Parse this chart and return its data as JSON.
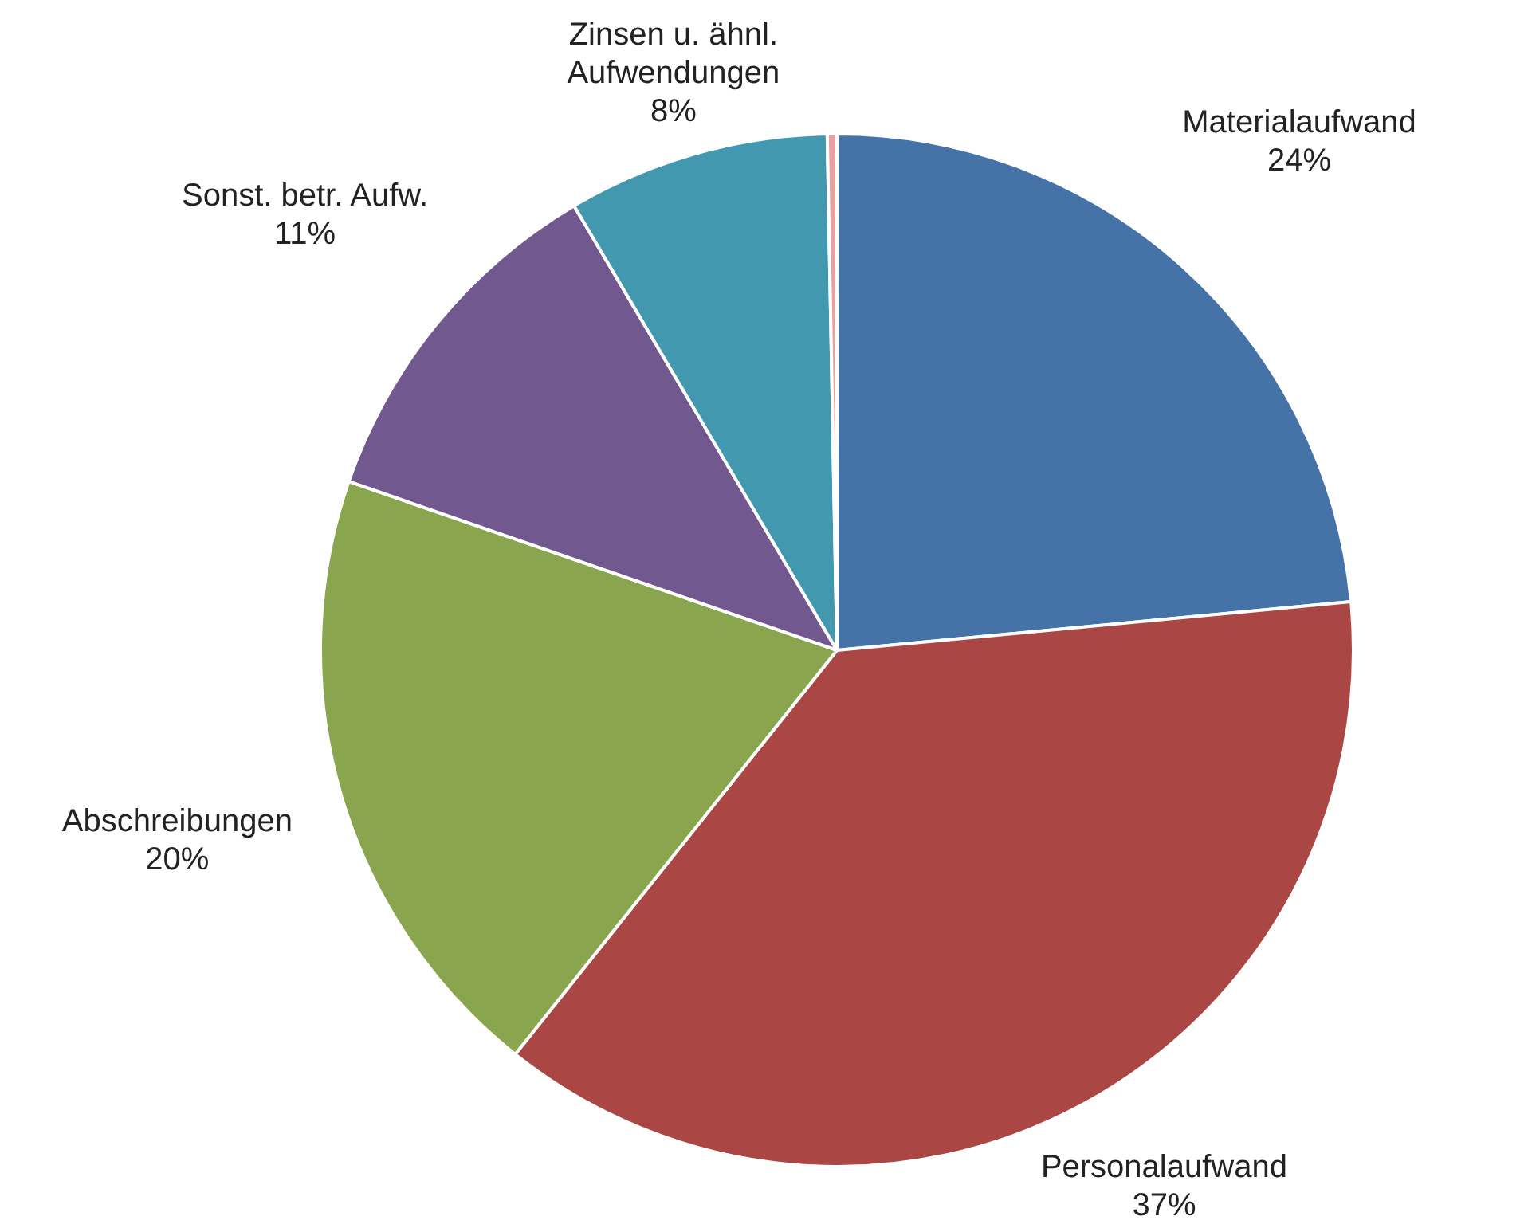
{
  "chart_data": {
    "type": "pie",
    "categories": [
      "Materialaufwand",
      "Personalaufwand",
      "Abschreibungen",
      "Sonst. betr. Aufw.",
      "Zinsen u. ähnl. Aufwendungen",
      null
    ],
    "values": [
      23.5,
      37.2,
      19.6,
      11.2,
      8.2,
      0.3
    ],
    "value_labels": [
      "24%",
      "37%",
      "20%",
      "11%",
      "8%",
      null
    ],
    "colors": [
      "#4572a7",
      "#aa4643",
      "#89a54e",
      "#71588f",
      "#4198af",
      "#e8a0a0"
    ],
    "legend": false
  }
}
